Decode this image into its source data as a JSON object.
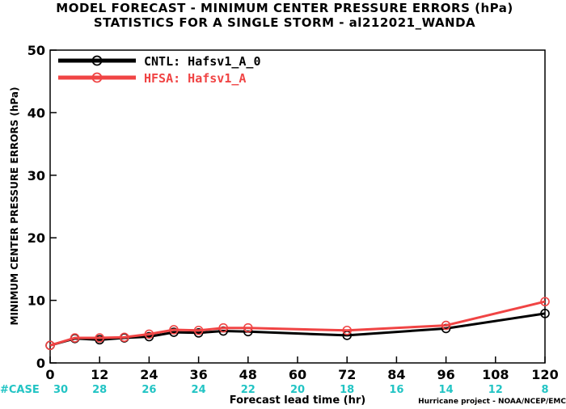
{
  "chart_data": {
    "type": "line",
    "title": "MODEL FORECAST - MINIMUM CENTER PRESSURE ERRORS (hPa)",
    "subtitle": "STATISTICS FOR A SINGLE STORM - al212021_WANDA",
    "xlabel": "Forecast lead time (hr)",
    "ylabel": "MINIMUM CENTER PRESSURE ERRORS (hPa)",
    "xlim": [
      0,
      120
    ],
    "ylim": [
      0,
      50
    ],
    "xticks": [
      "0",
      "12",
      "24",
      "36",
      "48",
      "60",
      "72",
      "84",
      "96",
      "108",
      "120"
    ],
    "yticks": [
      "0",
      "10",
      "20",
      "30",
      "40",
      "50"
    ],
    "grid": false,
    "legend_position": "top-left",
    "case_label": "#CASE",
    "case_counts": [
      "30",
      "28",
      "26",
      "24",
      "22",
      "20",
      "18",
      "16",
      "14",
      "12",
      "8"
    ],
    "credit": "Hurricane project - NOAA/NCEP/EMC",
    "series": [
      {
        "name": "CNTL: Hafsv1_A_0",
        "color": "#000000",
        "x": [
          0,
          6,
          12,
          18,
          24,
          30,
          36,
          42,
          48,
          72,
          96,
          120
        ],
        "y": [
          2.8,
          3.9,
          3.7,
          4.0,
          4.2,
          4.9,
          4.8,
          5.1,
          5.0,
          4.4,
          5.5,
          7.9
        ]
      },
      {
        "name": "HFSA: Hafsv1_A",
        "color": "#f04444",
        "x": [
          0,
          6,
          12,
          18,
          24,
          30,
          36,
          42,
          48,
          72,
          96,
          120
        ],
        "y": [
          2.8,
          4.0,
          4.0,
          4.1,
          4.6,
          5.3,
          5.2,
          5.6,
          5.6,
          5.2,
          6.0,
          9.8
        ]
      }
    ]
  }
}
